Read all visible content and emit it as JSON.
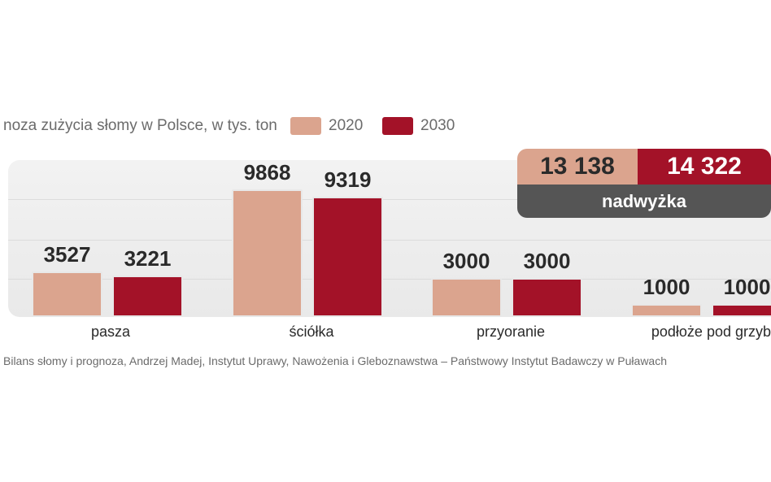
{
  "header": {
    "title": "noza zużycia słomy w Polsce, w tys. ton"
  },
  "legend": {
    "items": [
      {
        "label": "2020",
        "color": "#dba48e"
      },
      {
        "label": "2030",
        "color": "#a31228"
      }
    ]
  },
  "summary": {
    "value_2020": "13 138",
    "value_2030": "14 322",
    "label": "nadwyżka"
  },
  "source": "Bilans słomy i prognoza, Andrzej Madej, Instytut Uprawy, Nawożenia i Gleboznawstwa – Państwowy Instytut Badawczy w Puławach",
  "chart_data": {
    "type": "bar",
    "categories": [
      "pasza",
      "ściółka",
      "przyoranie",
      "podłoże pod grzyb"
    ],
    "series": [
      {
        "name": "2020",
        "values": [
          3527,
          9868,
          3000,
          1000
        ],
        "labels": [
          "3527",
          "9868",
          "3000",
          "1000"
        ],
        "color": "#dba48e"
      },
      {
        "name": "2030",
        "values": [
          3221,
          9319,
          3000,
          1000
        ],
        "labels": [
          "3221",
          "9319",
          "3000",
          "1000"
        ],
        "color": "#a31228"
      }
    ],
    "title": "",
    "xlabel": "",
    "ylabel": "",
    "ylim": [
      0,
      10000
    ],
    "grid": true,
    "legend_position": "top"
  }
}
